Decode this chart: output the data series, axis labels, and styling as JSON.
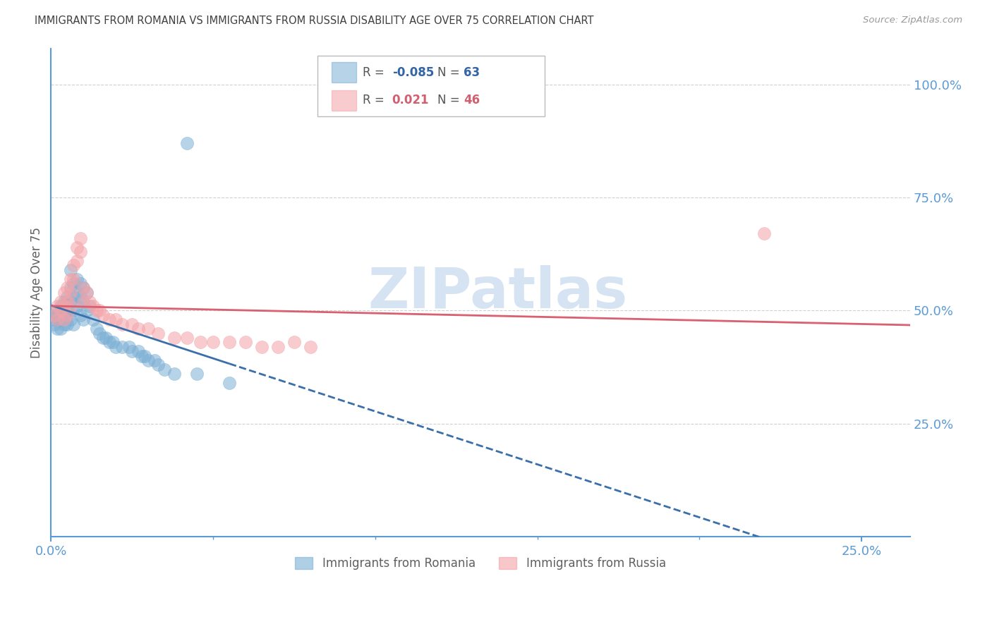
{
  "title": "IMMIGRANTS FROM ROMANIA VS IMMIGRANTS FROM RUSSIA DISABILITY AGE OVER 75 CORRELATION CHART",
  "source": "Source: ZipAtlas.com",
  "ylabel": "Disability Age Over 75",
  "ytick_labels": [
    "100.0%",
    "75.0%",
    "50.0%",
    "25.0%"
  ],
  "ytick_values": [
    1.0,
    0.75,
    0.5,
    0.25
  ],
  "xtick_labels": [
    "0.0%",
    "25.0%"
  ],
  "xtick_values": [
    0.0,
    0.25
  ],
  "xlim": [
    0.0,
    0.265
  ],
  "ylim": [
    0.0,
    1.08
  ],
  "legend1_R": "-0.085",
  "legend1_N": "63",
  "legend2_R": "0.021",
  "legend2_N": "46",
  "romania_color": "#7bafd4",
  "russia_color": "#f4a3a8",
  "axis_color": "#5b9bd5",
  "grid_color": "#d0d0d0",
  "title_color": "#404040",
  "tick_label_color": "#5b9bd5",
  "romania_x": [
    0.001,
    0.001,
    0.001,
    0.002,
    0.002,
    0.002,
    0.002,
    0.003,
    0.003,
    0.003,
    0.003,
    0.003,
    0.004,
    0.004,
    0.004,
    0.004,
    0.005,
    0.005,
    0.005,
    0.005,
    0.005,
    0.006,
    0.006,
    0.006,
    0.006,
    0.007,
    0.007,
    0.007,
    0.007,
    0.008,
    0.008,
    0.008,
    0.009,
    0.009,
    0.009,
    0.01,
    0.01,
    0.01,
    0.011,
    0.011,
    0.012,
    0.013,
    0.014,
    0.015,
    0.016,
    0.017,
    0.018,
    0.019,
    0.02,
    0.022,
    0.024,
    0.025,
    0.027,
    0.028,
    0.029,
    0.03,
    0.032,
    0.033,
    0.035,
    0.038,
    0.042,
    0.045,
    0.055
  ],
  "romania_y": [
    0.49,
    0.48,
    0.47,
    0.5,
    0.49,
    0.48,
    0.46,
    0.51,
    0.5,
    0.49,
    0.48,
    0.46,
    0.52,
    0.51,
    0.49,
    0.47,
    0.53,
    0.52,
    0.5,
    0.49,
    0.47,
    0.59,
    0.55,
    0.52,
    0.48,
    0.56,
    0.53,
    0.5,
    0.47,
    0.57,
    0.54,
    0.51,
    0.56,
    0.53,
    0.49,
    0.55,
    0.52,
    0.48,
    0.54,
    0.5,
    0.51,
    0.48,
    0.46,
    0.45,
    0.44,
    0.44,
    0.43,
    0.43,
    0.42,
    0.42,
    0.42,
    0.41,
    0.41,
    0.4,
    0.4,
    0.39,
    0.39,
    0.38,
    0.37,
    0.36,
    0.87,
    0.36,
    0.34
  ],
  "russia_x": [
    0.001,
    0.002,
    0.002,
    0.003,
    0.003,
    0.004,
    0.004,
    0.004,
    0.005,
    0.005,
    0.005,
    0.006,
    0.006,
    0.006,
    0.007,
    0.007,
    0.008,
    0.008,
    0.009,
    0.009,
    0.01,
    0.01,
    0.011,
    0.012,
    0.013,
    0.014,
    0.015,
    0.016,
    0.018,
    0.02,
    0.022,
    0.025,
    0.027,
    0.03,
    0.033,
    0.038,
    0.042,
    0.046,
    0.05,
    0.055,
    0.06,
    0.065,
    0.07,
    0.075,
    0.08,
    0.22
  ],
  "russia_y": [
    0.49,
    0.51,
    0.48,
    0.52,
    0.5,
    0.54,
    0.51,
    0.48,
    0.55,
    0.52,
    0.49,
    0.57,
    0.54,
    0.51,
    0.6,
    0.57,
    0.64,
    0.61,
    0.66,
    0.63,
    0.55,
    0.52,
    0.54,
    0.52,
    0.51,
    0.5,
    0.5,
    0.49,
    0.48,
    0.48,
    0.47,
    0.47,
    0.46,
    0.46,
    0.45,
    0.44,
    0.44,
    0.43,
    0.43,
    0.43,
    0.43,
    0.42,
    0.42,
    0.43,
    0.42,
    0.67
  ],
  "watermark_text": "ZIPatlas",
  "watermark_color": "#c5d8ef",
  "line_romania_color": "#3a6faa",
  "line_russia_color": "#d96070",
  "legend_box_color": "#e8e8e8",
  "bottom_legend_labels": [
    "Immigrants from Romania",
    "Immigrants from Russia"
  ]
}
